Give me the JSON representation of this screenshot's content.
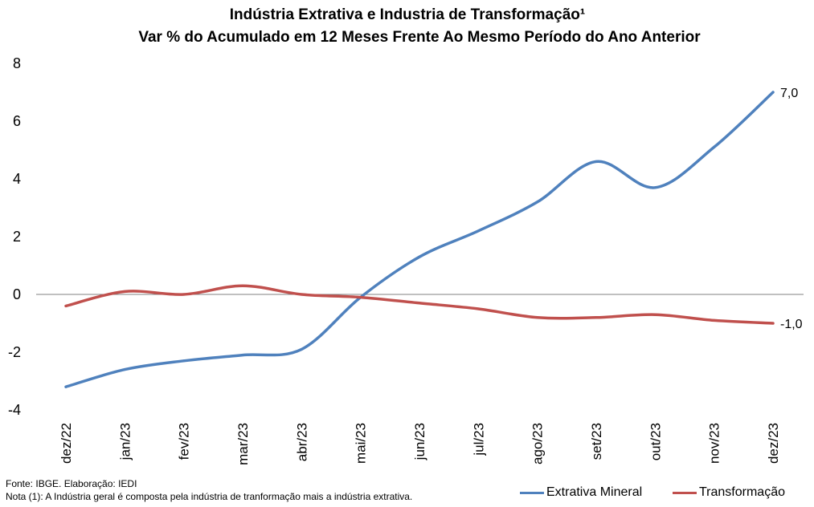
{
  "chart_data": {
    "type": "line",
    "title": "Indústria Extrativa e Industria de Transformação¹",
    "subtitle": "Var % do Acumulado em 12 Meses Frente Ao Mesmo Período do Ano Anterior",
    "categories": [
      "dez/22",
      "jan/23",
      "fev/23",
      "mar/23",
      "abr/23",
      "mai/23",
      "jun/23",
      "jul/23",
      "ago/23",
      "set/23",
      "out/23",
      "nov/23",
      "dez/23"
    ],
    "ylim": [
      -4,
      8
    ],
    "yticks": [
      "8",
      "6",
      "4",
      "2",
      "0",
      "-2",
      "-4"
    ],
    "grid": false,
    "legend_position": "bottom-right",
    "series": [
      {
        "name": "Extrativa Mineral",
        "color": "#4F81BD",
        "values": [
          -3.2,
          -2.6,
          -2.3,
          -2.1,
          -1.9,
          -0.1,
          1.3,
          2.2,
          3.2,
          4.6,
          3.7,
          5.1,
          7.0
        ],
        "end_label": "7,0"
      },
      {
        "name": "Transformação",
        "color": "#C0504D",
        "values": [
          -0.4,
          0.1,
          0.0,
          0.3,
          0.0,
          -0.1,
          -0.3,
          -0.5,
          -0.8,
          -0.8,
          -0.7,
          -0.9,
          -1.0
        ],
        "end_label": "-1,0"
      }
    ]
  },
  "footer": {
    "source": "Fonte: IBGE. Elaboração: IEDI",
    "note": "Nota (1): A Indústria geral é composta pela indústria de tranformação mais a indústria extrativa."
  },
  "legend": {
    "items": [
      {
        "label": "Extrativa Mineral",
        "color": "#4F81BD"
      },
      {
        "label": "Transformação",
        "color": "#C0504D"
      }
    ]
  }
}
